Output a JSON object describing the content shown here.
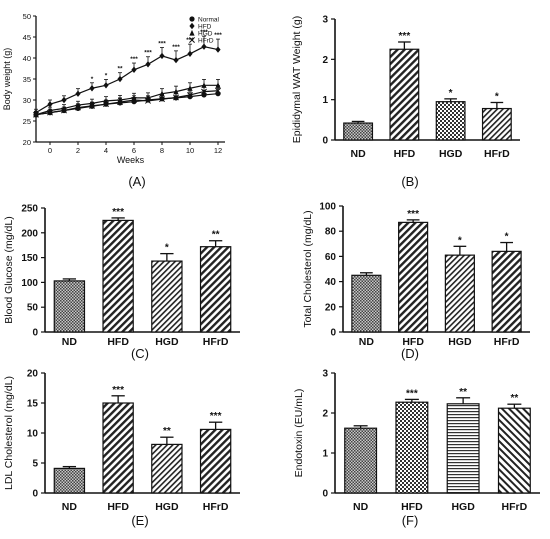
{
  "chart_data": [
    {
      "panel_label": "(A)",
      "type": "line",
      "xlabel": "Weeks",
      "ylabel": "Body weight (g)",
      "xlim": [
        -1,
        12.5
      ],
      "ylim": [
        20,
        50
      ],
      "xticks": [
        "0",
        "2",
        "4",
        "6",
        "8",
        "10",
        "12"
      ],
      "yticks": [
        "20",
        "25",
        "30",
        "35",
        "40",
        "45",
        "50"
      ],
      "x": [
        -1,
        0,
        1,
        2,
        3,
        4,
        5,
        6,
        7,
        8,
        9,
        10,
        11,
        12
      ],
      "legend_position": "top-right",
      "series": [
        {
          "name": "Normal",
          "marker": "circle",
          "values": [
            26.5,
            27,
            27.5,
            28,
            28.5,
            29,
            29.3,
            29.6,
            30,
            30.3,
            30.5,
            30.8,
            31.2,
            31.5
          ],
          "errors": [
            0.8,
            0.8,
            0.8,
            0.9,
            0.9,
            0.9,
            1,
            1,
            1,
            1,
            1.1,
            1.1,
            1.1,
            1.2
          ]
        },
        {
          "name": "HFD",
          "marker": "diamond",
          "values": [
            27,
            29,
            30,
            31.5,
            32.8,
            33.5,
            35,
            37.2,
            38.5,
            40.5,
            39.5,
            41,
            42.7,
            42
          ],
          "errors": [
            0.8,
            1,
            1,
            1.2,
            1.3,
            1.4,
            1.5,
            1.6,
            1.8,
            2,
            2.2,
            2.3,
            2.5,
            2.5
          ],
          "significance": [
            "",
            "",
            "",
            "",
            "*",
            "*",
            "**",
            "***",
            "***",
            "***",
            "***",
            "***",
            "***",
            "***"
          ]
        },
        {
          "name": "HGD",
          "marker": "triangle",
          "values": [
            26.5,
            27.5,
            28,
            28.8,
            29.2,
            29.8,
            30,
            30.5,
            30.5,
            31.5,
            32,
            32.8,
            33.5,
            33.5
          ],
          "errors": [
            0.8,
            0.8,
            0.9,
            0.9,
            1,
            1,
            1.1,
            1.1,
            1.2,
            1.2,
            1.3,
            1.3,
            1.4,
            1.4
          ]
        },
        {
          "name": "HFrD",
          "marker": "star",
          "values": [
            26.5,
            27,
            27.5,
            28.2,
            28.6,
            29,
            29.5,
            30,
            29.8,
            30.2,
            30.6,
            31.2,
            32,
            32.2
          ],
          "errors": [
            0.8,
            0.8,
            0.8,
            0.9,
            0.9,
            1,
            1,
            1,
            1.1,
            1.1,
            1.1,
            1.2,
            1.2,
            1.2
          ]
        }
      ]
    },
    {
      "panel_label": "(B)",
      "type": "bar",
      "ylabel": "Epididymal WAT Weight (g)",
      "ylim": [
        0,
        3
      ],
      "yticks": [
        "0",
        "1",
        "2",
        "3"
      ],
      "categories": [
        "ND",
        "HFD",
        "HGD",
        "HFrD"
      ],
      "values": [
        0.42,
        2.25,
        0.95,
        0.78
      ],
      "errors": [
        0.04,
        0.18,
        0.07,
        0.15
      ],
      "significance": [
        "",
        "***",
        "*",
        "*"
      ]
    },
    {
      "panel_label": "(C)",
      "type": "bar",
      "ylabel": "Blood Glucose (mg/dL)",
      "ylim": [
        0,
        250
      ],
      "yticks": [
        "0",
        "50",
        "100",
        "150",
        "200",
        "250"
      ],
      "categories": [
        "ND",
        "HFD",
        "HGD",
        "HFrD"
      ],
      "values": [
        103,
        225,
        143,
        172
      ],
      "errors": [
        4,
        5,
        15,
        12
      ],
      "significance": [
        "",
        "***",
        "*",
        "**"
      ]
    },
    {
      "panel_label": "(D)",
      "type": "bar",
      "ylabel": "Total Cholesterol (mg/dL)",
      "ylim": [
        0,
        100
      ],
      "yticks": [
        "0",
        "20",
        "40",
        "60",
        "80",
        "100"
      ],
      "categories": [
        "ND",
        "HFD",
        "HGD",
        "HFrD"
      ],
      "values": [
        45,
        87,
        61,
        64
      ],
      "errors": [
        2,
        2,
        7,
        7
      ],
      "significance": [
        "",
        "***",
        "*",
        "*"
      ]
    },
    {
      "panel_label": "(E)",
      "type": "bar",
      "ylabel": "LDL Cholesterol (mg/dL)",
      "ylim": [
        0,
        20
      ],
      "yticks": [
        "0",
        "5",
        "10",
        "15",
        "20"
      ],
      "categories": [
        "ND",
        "HFD",
        "HGD",
        "HFrD"
      ],
      "values": [
        4.1,
        15,
        8.1,
        10.6
      ],
      "errors": [
        0.3,
        1.2,
        1.2,
        1.2
      ],
      "significance": [
        "",
        "***",
        "**",
        "***"
      ]
    },
    {
      "panel_label": "(F)",
      "type": "bar",
      "ylabel": "Endotoxin (EU/mL)",
      "ylim": [
        0,
        3
      ],
      "yticks": [
        "0",
        "1",
        "2",
        "3"
      ],
      "categories": [
        "ND",
        "HFD",
        "HGD",
        "HFrD"
      ],
      "values": [
        1.62,
        2.27,
        2.23,
        2.12
      ],
      "errors": [
        0.06,
        0.07,
        0.15,
        0.1
      ],
      "significance": [
        "",
        "***",
        "**",
        "**"
      ]
    }
  ],
  "colors": {
    "ink": "#111111",
    "bar_fill": "#ffffff",
    "bar_hatch": "#222222"
  }
}
